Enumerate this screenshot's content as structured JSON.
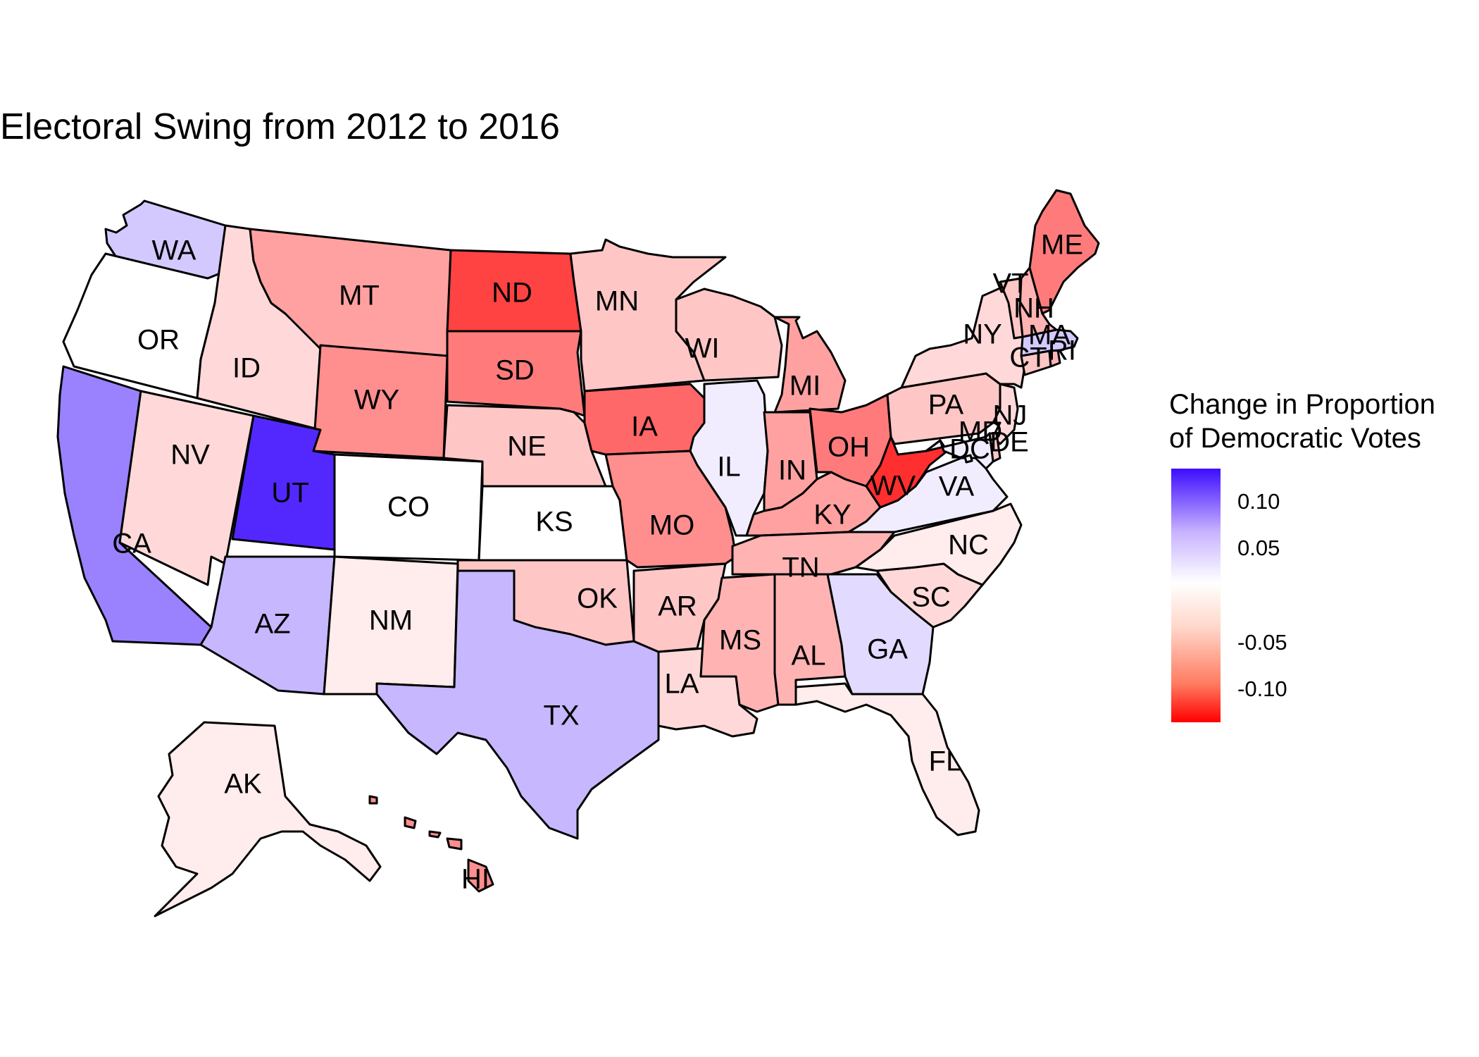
{
  "title": "Electoral Swing from 2012 to 2016",
  "legend": {
    "title_line1": "Change in Proportion",
    "title_line2": "of Democratic Votes",
    "ticks": [
      {
        "label": "0.10",
        "value": 0.1
      },
      {
        "label": "0.05",
        "value": 0.05
      },
      {
        "label": "-0.05",
        "value": -0.05
      },
      {
        "label": "-0.10",
        "value": -0.1
      }
    ],
    "range": [
      -0.135,
      0.135
    ],
    "colors": {
      "high": "#3d0dff",
      "mid": "#ffffff",
      "low": "#ff0000"
    }
  },
  "states": {
    "WA": {
      "label": "WA",
      "swing": 0.03
    },
    "OR": {
      "label": "OR",
      "swing": 0.0
    },
    "CA": {
      "label": "CA",
      "swing": 0.07
    },
    "NV": {
      "label": "NV",
      "swing": -0.02
    },
    "ID": {
      "label": "ID",
      "swing": -0.02
    },
    "MT": {
      "label": "MT",
      "swing": -0.05
    },
    "WY": {
      "label": "WY",
      "swing": -0.06
    },
    "UT": {
      "label": "UT",
      "swing": 0.12
    },
    "AZ": {
      "label": "AZ",
      "swing": 0.04
    },
    "CO": {
      "label": "CO",
      "swing": 0.0
    },
    "NM": {
      "label": "NM",
      "swing": -0.01
    },
    "ND": {
      "label": "ND",
      "swing": -0.1
    },
    "SD": {
      "label": "SD",
      "swing": -0.07
    },
    "NE": {
      "label": "NE",
      "swing": -0.03
    },
    "KS": {
      "label": "KS",
      "swing": 0.0
    },
    "OK": {
      "label": "OK",
      "swing": -0.03
    },
    "TX": {
      "label": "TX",
      "swing": 0.04
    },
    "MN": {
      "label": "MN",
      "swing": -0.03
    },
    "IA": {
      "label": "IA",
      "swing": -0.08
    },
    "MO": {
      "label": "MO",
      "swing": -0.06
    },
    "AR": {
      "label": "AR",
      "swing": -0.03
    },
    "LA": {
      "label": "LA",
      "swing": -0.02
    },
    "WI": {
      "label": "WI",
      "swing": -0.03
    },
    "IL": {
      "label": "IL",
      "swing": 0.01
    },
    "MI": {
      "label": "MI",
      "swing": -0.05
    },
    "IN": {
      "label": "IN",
      "swing": -0.05
    },
    "OH": {
      "label": "OH",
      "swing": -0.07
    },
    "KY": {
      "label": "KY",
      "swing": -0.05
    },
    "TN": {
      "label": "TN",
      "swing": -0.04
    },
    "MS": {
      "label": "MS",
      "swing": -0.04
    },
    "AL": {
      "label": "AL",
      "swing": -0.04
    },
    "GA": {
      "label": "GA",
      "swing": 0.02
    },
    "FL": {
      "label": "FL",
      "swing": -0.01
    },
    "SC": {
      "label": "SC",
      "swing": -0.02
    },
    "NC": {
      "label": "NC",
      "swing": -0.01
    },
    "VA": {
      "label": "VA",
      "swing": 0.01
    },
    "WV": {
      "label": "WV",
      "swing": -0.11
    },
    "PA": {
      "label": "PA",
      "swing": -0.03
    },
    "NY": {
      "label": "NY",
      "swing": -0.02
    },
    "NJ": {
      "label": "NJ",
      "swing": -0.02
    },
    "DE": {
      "label": "DE",
      "swing": -0.03
    },
    "MD": {
      "label": "MD",
      "swing": 0.01
    },
    "DC": {
      "label": "DC",
      "swing": 0.01
    },
    "CT": {
      "label": "CT",
      "swing": -0.03
    },
    "RI": {
      "label": "RI",
      "swing": -0.04
    },
    "MA": {
      "label": "MA",
      "swing": 0.03
    },
    "VT": {
      "label": "VT",
      "swing": -0.03
    },
    "NH": {
      "label": "NH",
      "swing": -0.04
    },
    "ME": {
      "label": "ME",
      "swing": -0.07
    },
    "AK": {
      "label": "AK",
      "swing": -0.01
    },
    "HI": {
      "label": "HI",
      "swing": -0.06
    }
  }
}
